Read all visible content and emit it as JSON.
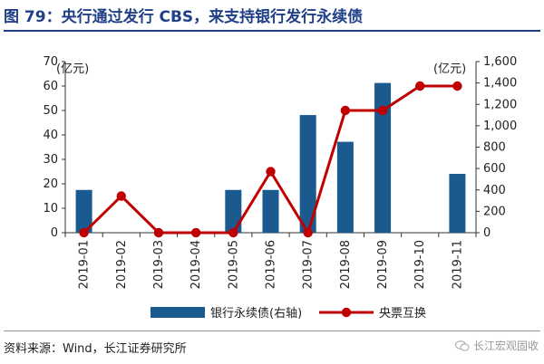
{
  "figure": {
    "title": "图 79：央行通过发行 CBS，来支持银行发行永续债",
    "source": "资料来源：Wind，长江证券研究所",
    "watermark": "长江宏观固收",
    "colors": {
      "title": "#1f3f86",
      "bar": "#1a5a8f",
      "line": "#c00000"
    }
  },
  "chart_data": {
    "type": "bar+line",
    "categories": [
      "2019-01",
      "2019-02",
      "2019-03",
      "2019-04",
      "2019-05",
      "2019-06",
      "2019-07",
      "2019-08",
      "2019-09",
      "2019-10",
      "2019-11"
    ],
    "left_axis": {
      "unit": "(亿元)",
      "min": 0,
      "max": 70,
      "ticks": [
        "0",
        "10",
        "20",
        "30",
        "40",
        "50",
        "60",
        "70"
      ]
    },
    "right_axis": {
      "unit": "(亿元)",
      "min": 0,
      "max": 1600,
      "ticks": [
        "0",
        "200",
        "400",
        "600",
        "800",
        "1,000",
        "1,200",
        "1,400",
        "1,600"
      ]
    },
    "series": [
      {
        "name": "银行永续债(右轴)",
        "type": "bar",
        "axis": "right",
        "color": "#1a5a8f",
        "values": [
          400,
          0,
          0,
          0,
          400,
          400,
          1100,
          850,
          1400,
          0,
          550
        ]
      },
      {
        "name": "央票互换",
        "type": "line",
        "axis": "left",
        "color": "#c00000",
        "values": [
          0,
          15,
          0,
          0,
          0,
          25,
          0,
          50,
          50,
          60,
          60
        ]
      }
    ],
    "grid": false,
    "legend": "bottom"
  }
}
